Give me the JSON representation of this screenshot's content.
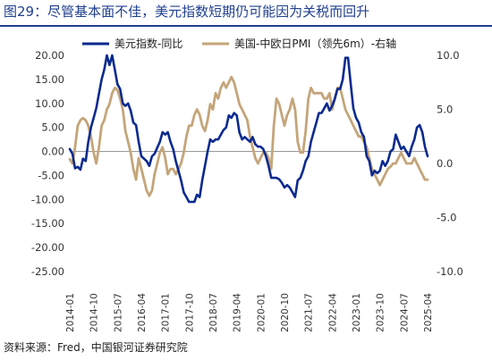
{
  "header": {
    "title": "图29：尽管基本面不佳，美元指数短期仍可能因为关税而回升"
  },
  "footer": {
    "source": "资料来源：Fred，中国银河证券研究院"
  },
  "colors": {
    "title": "#1f3f8f",
    "series_left": "#0b2a8f",
    "series_right": "#c4a57a"
  },
  "chart_data": {
    "type": "line",
    "title": "",
    "xlabel": "",
    "ylabel": "",
    "x_ticks": [
      "2014-01",
      "2014-10",
      "2015-07",
      "2016-04",
      "2017-01",
      "2017-10",
      "2018-07",
      "2019-04",
      "2020-01",
      "2020-10",
      "2021-07",
      "2022-04",
      "2023-01",
      "2023-10",
      "2024-07",
      "2025-04"
    ],
    "ylim_left": [
      -25,
      20
    ],
    "yticks_left": [
      "20.00",
      "15.00",
      "10.00",
      "5.00",
      "0.00",
      "-5.00",
      "-10.00",
      "-15.00",
      "-20.00",
      "-25.00"
    ],
    "ylim_right": [
      -10,
      10
    ],
    "yticks_right": [
      "10.0",
      "5.0",
      "0.0",
      "-5.0",
      "-10.0"
    ],
    "legend_position": "top",
    "grid": false,
    "series": [
      {
        "name": "美元指数-同比",
        "axis": "left",
        "points": [
          [
            "2014-01",
            0.5
          ],
          [
            "2014-02",
            -0.5
          ],
          [
            "2014-03",
            -3.5
          ],
          [
            "2014-04",
            -3.2
          ],
          [
            "2014-05",
            -3.8
          ],
          [
            "2014-06",
            -1.5
          ],
          [
            "2014-07",
            -2
          ],
          [
            "2014-08",
            2
          ],
          [
            "2014-09",
            5
          ],
          [
            "2014-10",
            7
          ],
          [
            "2014-11",
            9
          ],
          [
            "2014-12",
            12
          ],
          [
            "2015-01",
            15
          ],
          [
            "2015-02",
            17
          ],
          [
            "2015-03",
            20
          ],
          [
            "2015-04",
            18
          ],
          [
            "2015-05",
            20
          ],
          [
            "2015-06",
            17
          ],
          [
            "2015-07",
            14
          ],
          [
            "2015-08",
            13
          ],
          [
            "2015-09",
            10
          ],
          [
            "2015-10",
            9.5
          ],
          [
            "2015-11",
            10
          ],
          [
            "2015-12",
            8.5
          ],
          [
            "2016-01",
            6
          ],
          [
            "2016-02",
            5.5
          ],
          [
            "2016-03",
            2
          ],
          [
            "2016-04",
            -1
          ],
          [
            "2016-05",
            -1.5
          ],
          [
            "2016-06",
            -2
          ],
          [
            "2016-07",
            -3
          ],
          [
            "2016-08",
            -1
          ],
          [
            "2016-09",
            -0.5
          ],
          [
            "2016-10",
            0.8
          ],
          [
            "2016-11",
            2
          ],
          [
            "2016-12",
            4
          ],
          [
            "2017-01",
            3.5
          ],
          [
            "2017-02",
            4
          ],
          [
            "2017-03",
            2
          ],
          [
            "2017-04",
            0.5
          ],
          [
            "2017-05",
            -2
          ],
          [
            "2017-06",
            -4
          ],
          [
            "2017-07",
            -6
          ],
          [
            "2017-08",
            -8.5
          ],
          [
            "2017-09",
            -9.5
          ],
          [
            "2017-10",
            -10.5
          ],
          [
            "2017-11",
            -10.5
          ],
          [
            "2017-12",
            -10.5
          ],
          [
            "2018-01",
            -9
          ],
          [
            "2018-02",
            -9.5
          ],
          [
            "2018-03",
            -6
          ],
          [
            "2018-04",
            -3
          ],
          [
            "2018-05",
            0
          ],
          [
            "2018-06",
            2.5
          ],
          [
            "2018-07",
            2
          ],
          [
            "2018-08",
            2.5
          ],
          [
            "2018-09",
            2.5
          ],
          [
            "2018-10",
            3.5
          ],
          [
            "2018-11",
            4.5
          ],
          [
            "2018-12",
            5
          ],
          [
            "2019-01",
            7.5
          ],
          [
            "2019-02",
            7
          ],
          [
            "2019-03",
            8
          ],
          [
            "2019-04",
            7.5
          ],
          [
            "2019-05",
            4
          ],
          [
            "2019-06",
            2.5
          ],
          [
            "2019-07",
            3
          ],
          [
            "2019-08",
            2.5
          ],
          [
            "2019-09",
            2
          ],
          [
            "2019-10",
            3
          ],
          [
            "2019-11",
            1.5
          ],
          [
            "2019-12",
            1
          ],
          [
            "2020-01",
            1
          ],
          [
            "2020-02",
            0.5
          ],
          [
            "2020-03",
            -1
          ],
          [
            "2020-04",
            -3
          ],
          [
            "2020-05",
            -5.5
          ],
          [
            "2020-06",
            -5.5
          ],
          [
            "2020-07",
            -5.5
          ],
          [
            "2020-08",
            -5.8
          ],
          [
            "2020-09",
            -6.5
          ],
          [
            "2020-10",
            -7.5
          ],
          [
            "2020-11",
            -7
          ],
          [
            "2020-12",
            -7.5
          ],
          [
            "2021-01",
            -8.5
          ],
          [
            "2021-02",
            -9.5
          ],
          [
            "2021-03",
            -6
          ],
          [
            "2021-04",
            -5.5
          ],
          [
            "2021-05",
            -4
          ],
          [
            "2021-06",
            -2
          ],
          [
            "2021-07",
            -1
          ],
          [
            "2021-08",
            2
          ],
          [
            "2021-09",
            4
          ],
          [
            "2021-10",
            6
          ],
          [
            "2021-11",
            8
          ],
          [
            "2021-12",
            8
          ],
          [
            "2022-01",
            9
          ],
          [
            "2022-02",
            10
          ],
          [
            "2022-03",
            8.5
          ],
          [
            "2022-04",
            9.5
          ],
          [
            "2022-05",
            11
          ],
          [
            "2022-06",
            13
          ],
          [
            "2022-07",
            13
          ],
          [
            "2022-08",
            15
          ],
          [
            "2022-09",
            19.5
          ],
          [
            "2022-10",
            19.5
          ],
          [
            "2022-11",
            14
          ],
          [
            "2022-12",
            9
          ],
          [
            "2023-01",
            7
          ],
          [
            "2023-02",
            6
          ],
          [
            "2023-03",
            4
          ],
          [
            "2023-04",
            3
          ],
          [
            "2023-05",
            -1
          ],
          [
            "2023-06",
            -2
          ],
          [
            "2023-07",
            -5
          ],
          [
            "2023-08",
            -4
          ],
          [
            "2023-09",
            -4.5
          ],
          [
            "2023-10",
            -4
          ],
          [
            "2023-11",
            -2
          ],
          [
            "2023-12",
            -3
          ],
          [
            "2024-01",
            -2
          ],
          [
            "2024-02",
            0
          ],
          [
            "2024-03",
            0.5
          ],
          [
            "2024-04",
            3.5
          ],
          [
            "2024-05",
            2
          ],
          [
            "2024-06",
            0.5
          ],
          [
            "2024-07",
            1
          ],
          [
            "2024-08",
            0
          ],
          [
            "2024-09",
            -1
          ],
          [
            "2024-10",
            1
          ],
          [
            "2024-11",
            2.5
          ],
          [
            "2024-12",
            5
          ],
          [
            "2025-01",
            5.5
          ],
          [
            "2025-02",
            4
          ],
          [
            "2025-03",
            1
          ],
          [
            "2025-04",
            -1
          ]
        ]
      },
      {
        "name": "美国-中欧日PMI（领先6m）-右轴",
        "axis": "right",
        "points": [
          [
            "2014-01",
            0.4
          ],
          [
            "2014-02",
            0
          ],
          [
            "2014-03",
            1.5
          ],
          [
            "2014-04",
            3.5
          ],
          [
            "2014-05",
            4
          ],
          [
            "2014-06",
            4.2
          ],
          [
            "2014-07",
            4
          ],
          [
            "2014-08",
            3.5
          ],
          [
            "2014-09",
            2.5
          ],
          [
            "2014-10",
            1
          ],
          [
            "2014-11",
            0
          ],
          [
            "2014-12",
            1.5
          ],
          [
            "2015-01",
            3.5
          ],
          [
            "2015-02",
            4
          ],
          [
            "2015-03",
            5
          ],
          [
            "2015-04",
            5.5
          ],
          [
            "2015-05",
            6.5
          ],
          [
            "2015-06",
            7
          ],
          [
            "2015-07",
            6.8
          ],
          [
            "2015-08",
            6
          ],
          [
            "2015-09",
            5
          ],
          [
            "2015-10",
            3
          ],
          [
            "2015-11",
            2
          ],
          [
            "2015-12",
            1
          ],
          [
            "2016-01",
            -0.5
          ],
          [
            "2016-02",
            -1.5
          ],
          [
            "2016-03",
            0.5
          ],
          [
            "2016-04",
            -0.5
          ],
          [
            "2016-05",
            -1.5
          ],
          [
            "2016-06",
            -2.5
          ],
          [
            "2016-07",
            -3
          ],
          [
            "2016-08",
            -2.5
          ],
          [
            "2016-09",
            -1
          ],
          [
            "2016-10",
            0
          ],
          [
            "2016-11",
            1
          ],
          [
            "2016-12",
            1.5
          ],
          [
            "2017-01",
            0.5
          ],
          [
            "2017-02",
            -1
          ],
          [
            "2017-03",
            -0.5
          ],
          [
            "2017-04",
            -0.5
          ],
          [
            "2017-05",
            -1
          ],
          [
            "2017-06",
            -0.5
          ],
          [
            "2017-07",
            0
          ],
          [
            "2017-08",
            1
          ],
          [
            "2017-09",
            2.5
          ],
          [
            "2017-10",
            3.5
          ],
          [
            "2017-11",
            3.5
          ],
          [
            "2017-12",
            4.5
          ],
          [
            "2018-01",
            5
          ],
          [
            "2018-02",
            4.5
          ],
          [
            "2018-03",
            3.5
          ],
          [
            "2018-04",
            3
          ],
          [
            "2018-05",
            4
          ],
          [
            "2018-06",
            5.5
          ],
          [
            "2018-07",
            5
          ],
          [
            "2018-08",
            6.5
          ],
          [
            "2018-09",
            6
          ],
          [
            "2018-10",
            7
          ],
          [
            "2018-11",
            7.5
          ],
          [
            "2018-12",
            7
          ],
          [
            "2019-01",
            7.5
          ],
          [
            "2019-02",
            8
          ],
          [
            "2019-03",
            7.5
          ],
          [
            "2019-04",
            6.5
          ],
          [
            "2019-05",
            5.5
          ],
          [
            "2019-06",
            5
          ],
          [
            "2019-07",
            4.5
          ],
          [
            "2019-08",
            4
          ],
          [
            "2019-09",
            2.5
          ],
          [
            "2019-10",
            1.5
          ],
          [
            "2019-11",
            0.5
          ],
          [
            "2019-12",
            0
          ],
          [
            "2020-01",
            0.5
          ],
          [
            "2020-02",
            1
          ],
          [
            "2020-03",
            1
          ],
          [
            "2020-04",
            0.5
          ],
          [
            "2020-05",
            -0.5
          ],
          [
            "2020-06",
            3.5
          ],
          [
            "2020-07",
            6
          ],
          [
            "2020-08",
            5.5
          ],
          [
            "2020-09",
            4.5
          ],
          [
            "2020-10",
            3.5
          ],
          [
            "2020-11",
            4.5
          ],
          [
            "2020-12",
            5
          ],
          [
            "2021-01",
            6
          ],
          [
            "2021-02",
            5
          ],
          [
            "2021-03",
            2
          ],
          [
            "2021-04",
            1
          ],
          [
            "2021-05",
            1
          ],
          [
            "2021-06",
            3
          ],
          [
            "2021-07",
            6
          ],
          [
            "2021-08",
            7
          ],
          [
            "2021-09",
            6.5
          ],
          [
            "2021-10",
            6.5
          ],
          [
            "2021-11",
            6.5
          ],
          [
            "2021-12",
            6.5
          ],
          [
            "2022-01",
            6
          ],
          [
            "2022-02",
            6
          ],
          [
            "2022-03",
            6.5
          ],
          [
            "2022-04",
            5
          ],
          [
            "2022-05",
            6
          ],
          [
            "2022-06",
            7
          ],
          [
            "2022-07",
            7
          ],
          [
            "2022-08",
            6
          ],
          [
            "2022-09",
            5
          ],
          [
            "2022-10",
            4.5
          ],
          [
            "2022-11",
            4
          ],
          [
            "2022-12",
            3.5
          ],
          [
            "2023-01",
            3
          ],
          [
            "2023-02",
            2.5
          ],
          [
            "2023-03",
            2.5
          ],
          [
            "2023-04",
            2
          ],
          [
            "2023-05",
            1.5
          ],
          [
            "2023-06",
            0.5
          ],
          [
            "2023-07",
            -0.5
          ],
          [
            "2023-08",
            -1
          ],
          [
            "2023-09",
            -1.5
          ],
          [
            "2023-10",
            -2
          ],
          [
            "2023-11",
            -1.5
          ],
          [
            "2023-12",
            -1
          ],
          [
            "2024-01",
            -0.5
          ],
          [
            "2024-02",
            -0.3
          ],
          [
            "2024-03",
            0
          ],
          [
            "2024-04",
            0
          ],
          [
            "2024-05",
            0.5
          ],
          [
            "2024-06",
            1
          ],
          [
            "2024-07",
            0.5
          ],
          [
            "2024-08",
            0
          ],
          [
            "2024-09",
            0
          ],
          [
            "2024-10",
            0
          ],
          [
            "2024-11",
            0.5
          ],
          [
            "2024-12",
            0
          ],
          [
            "2025-01",
            -0.5
          ],
          [
            "2025-02",
            -1
          ],
          [
            "2025-03",
            -1.5
          ],
          [
            "2025-04",
            -1.5
          ]
        ]
      }
    ]
  }
}
